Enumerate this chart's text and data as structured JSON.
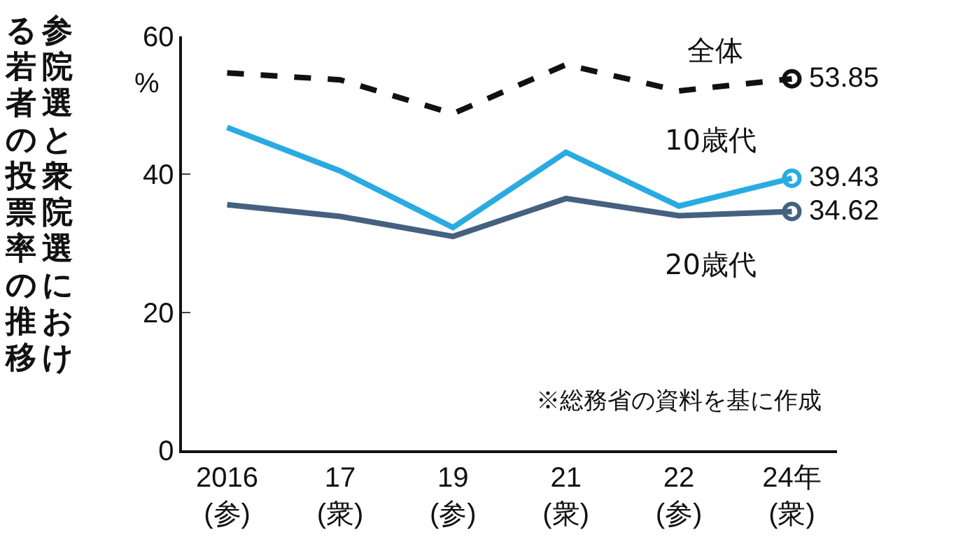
{
  "chart_data": {
    "type": "line",
    "title": "参院選と衆院選における若者の投票率の推移",
    "ylabel": "%",
    "categories": [
      "2016\n(参)",
      "17\n(衆)",
      "19\n(参)",
      "21\n(衆)",
      "22\n(参)",
      "24年\n(衆)"
    ],
    "series": [
      {
        "name": "全体",
        "color": "#111111",
        "line_style": "dashed",
        "values": [
          54.7,
          53.7,
          48.8,
          55.9,
          52.1,
          53.85
        ],
        "value_labels": [
          null,
          null,
          null,
          null,
          null,
          "53.85"
        ]
      },
      {
        "name": "10歳代",
        "color": "#29abe2",
        "line_style": "solid",
        "values": [
          46.8,
          40.5,
          32.3,
          43.2,
          35.4,
          39.43
        ],
        "value_labels": [
          null,
          null,
          null,
          null,
          null,
          "39.43"
        ]
      },
      {
        "name": "20歳代",
        "color": "#44617f",
        "line_style": "solid",
        "values": [
          35.6,
          33.9,
          31.0,
          36.5,
          34.0,
          34.62
        ],
        "value_labels": [
          null,
          null,
          null,
          null,
          null,
          "34.62"
        ]
      }
    ],
    "ylim": [
      0,
      60
    ],
    "yticks": [
      0,
      20,
      40,
      60
    ],
    "grid": false,
    "legend": false,
    "annotations": [
      "※総務省の資料を基に作成"
    ]
  }
}
